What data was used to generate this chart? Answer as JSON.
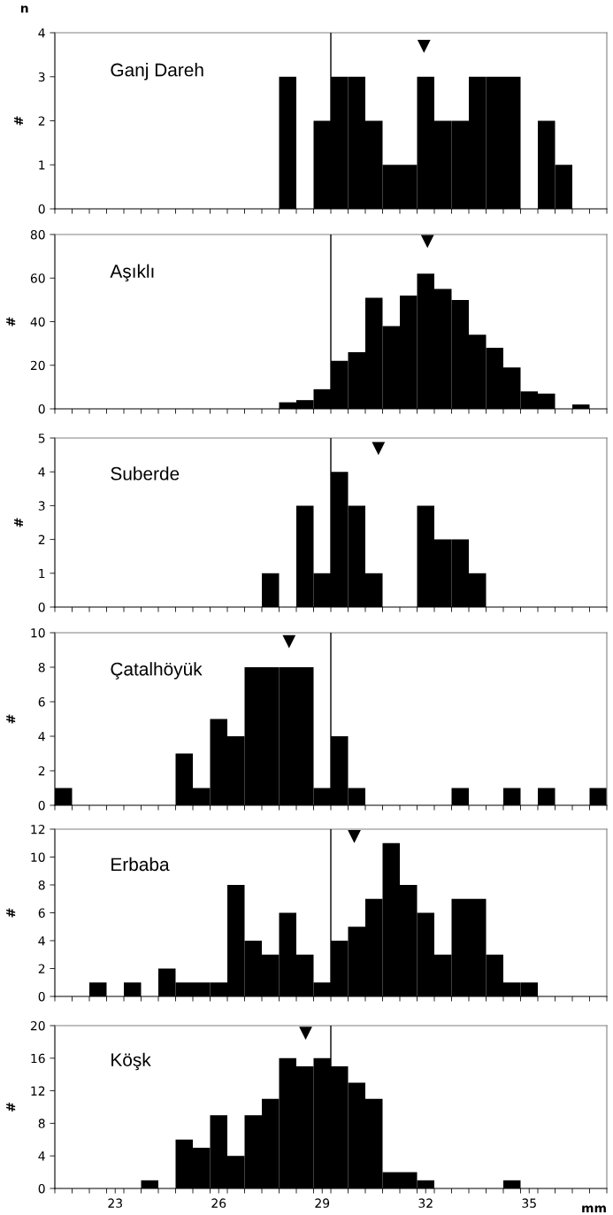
{
  "chart_data": [
    {
      "type": "histogram",
      "title": "Ganj Dareh",
      "ylabel": "#",
      "annotations": [
        "n"
      ],
      "tick_labels": "y",
      "xlim": [
        21.25,
        37.25
      ],
      "ylim": [
        0,
        4
      ],
      "yticks": [
        0,
        1,
        2,
        3,
        4
      ],
      "grid": false,
      "bins": [
        21.25,
        21.75,
        22.25,
        22.75,
        23.25,
        23.75,
        24.25,
        24.75,
        25.25,
        25.75,
        26.25,
        26.75,
        27.25,
        27.75,
        28.25,
        28.75,
        29.25,
        29.75,
        30.25,
        30.75,
        31.25,
        31.75,
        32.25,
        32.75,
        33.25,
        33.75,
        34.25,
        34.75,
        35.25,
        35.75,
        36.25,
        36.75,
        37.25
      ],
      "xticks": [
        {
          "value": 21.25,
          "label": null
        },
        {
          "value": 21.75,
          "label": null
        },
        {
          "value": 22.25,
          "label": null
        },
        {
          "value": 22.75,
          "label": null
        },
        {
          "value": 23.25,
          "label": null
        },
        {
          "value": 23.75,
          "label": null
        },
        {
          "value": 24.25,
          "label": null
        },
        {
          "value": 24.75,
          "label": null
        },
        {
          "value": 25.25,
          "label": null
        },
        {
          "value": 25.75,
          "label": null
        },
        {
          "value": 26.25,
          "label": null
        },
        {
          "value": 26.75,
          "label": null
        },
        {
          "value": 27.25,
          "label": null
        },
        {
          "value": 27.75,
          "label": null
        },
        {
          "value": 28.25,
          "label": null
        },
        {
          "value": 28.75,
          "label": null
        },
        {
          "value": 29.25,
          "label": null
        },
        {
          "value": 29.75,
          "label": null
        },
        {
          "value": 30.25,
          "label": null
        },
        {
          "value": 30.75,
          "label": null
        },
        {
          "value": 31.25,
          "label": null
        },
        {
          "value": 31.75,
          "label": null
        },
        {
          "value": 32.25,
          "label": null
        },
        {
          "value": 32.75,
          "label": null
        },
        {
          "value": 33.25,
          "label": null
        },
        {
          "value": 33.75,
          "label": null
        },
        {
          "value": 34.25,
          "label": null
        },
        {
          "value": 34.75,
          "label": null
        },
        {
          "value": 35.25,
          "label": null
        },
        {
          "value": 35.75,
          "label": null
        },
        {
          "value": 36.25,
          "label": null
        },
        {
          "value": 36.75,
          "label": null
        },
        {
          "value": 37.25,
          "label": null
        }
      ],
      "ref_lines": [
        {
          "axis": "x",
          "value": 29.25,
          "color": "#000000"
        }
      ],
      "series": [
        {
          "type": "histogram",
          "color": "#000000",
          "values": [
            0,
            0,
            0,
            0,
            0,
            0,
            0,
            0,
            0,
            0,
            0,
            0,
            0,
            3,
            0,
            2,
            3,
            3,
            2,
            1,
            1,
            3,
            2,
            2,
            3,
            3,
            3,
            0,
            2,
            1,
            0,
            0
          ]
        },
        {
          "type": "scatter",
          "marker": "triangle",
          "color": "#000000",
          "x": [
            31.95
          ],
          "values": [
            3.7
          ]
        }
      ]
    },
    {
      "type": "histogram",
      "title": "Aşıklı",
      "ylabel": "#",
      "tick_labels": "y",
      "xlim": [
        21.25,
        37.25
      ],
      "ylim": [
        0,
        80
      ],
      "yticks": [
        0,
        20,
        40,
        60,
        80
      ],
      "grid": false,
      "bins": [
        21.25,
        21.75,
        22.25,
        22.75,
        23.25,
        23.75,
        24.25,
        24.75,
        25.25,
        25.75,
        26.25,
        26.75,
        27.25,
        27.75,
        28.25,
        28.75,
        29.25,
        29.75,
        30.25,
        30.75,
        31.25,
        31.75,
        32.25,
        32.75,
        33.25,
        33.75,
        34.25,
        34.75,
        35.25,
        35.75,
        36.25,
        36.75,
        37.25
      ],
      "xticks": [
        {
          "value": 21.25,
          "label": null
        },
        {
          "value": 21.75,
          "label": null
        },
        {
          "value": 22.25,
          "label": null
        },
        {
          "value": 22.75,
          "label": null
        },
        {
          "value": 23.25,
          "label": null
        },
        {
          "value": 23.75,
          "label": null
        },
        {
          "value": 24.25,
          "label": null
        },
        {
          "value": 24.75,
          "label": null
        },
        {
          "value": 25.25,
          "label": null
        },
        {
          "value": 25.75,
          "label": null
        },
        {
          "value": 26.25,
          "label": null
        },
        {
          "value": 26.75,
          "label": null
        },
        {
          "value": 27.25,
          "label": null
        },
        {
          "value": 27.75,
          "label": null
        },
        {
          "value": 28.25,
          "label": null
        },
        {
          "value": 28.75,
          "label": null
        },
        {
          "value": 29.25,
          "label": null
        },
        {
          "value": 29.75,
          "label": null
        },
        {
          "value": 30.25,
          "label": null
        },
        {
          "value": 30.75,
          "label": null
        },
        {
          "value": 31.25,
          "label": null
        },
        {
          "value": 31.75,
          "label": null
        },
        {
          "value": 32.25,
          "label": null
        },
        {
          "value": 32.75,
          "label": null
        },
        {
          "value": 33.25,
          "label": null
        },
        {
          "value": 33.75,
          "label": null
        },
        {
          "value": 34.25,
          "label": null
        },
        {
          "value": 34.75,
          "label": null
        },
        {
          "value": 35.25,
          "label": null
        },
        {
          "value": 35.75,
          "label": null
        },
        {
          "value": 36.25,
          "label": null
        },
        {
          "value": 36.75,
          "label": null
        },
        {
          "value": 37.25,
          "label": null
        }
      ],
      "ref_lines": [
        {
          "axis": "x",
          "value": 29.25,
          "color": "#000000"
        }
      ],
      "series": [
        {
          "type": "histogram",
          "color": "#000000",
          "values": [
            0,
            0,
            0,
            0,
            0,
            0,
            0,
            0,
            0,
            0,
            0,
            0,
            0,
            3,
            4,
            9,
            22,
            26,
            51,
            38,
            52,
            62,
            55,
            50,
            34,
            28,
            19,
            8,
            7,
            0,
            2,
            0
          ]
        },
        {
          "type": "scatter",
          "marker": "triangle",
          "color": "#000000",
          "x": [
            32.05
          ],
          "values": [
            77
          ]
        }
      ]
    },
    {
      "type": "histogram",
      "title": "Suberde",
      "ylabel": "#",
      "tick_labels": "y",
      "xlim": [
        21.25,
        37.25
      ],
      "ylim": [
        0,
        5
      ],
      "yticks": [
        0,
        1,
        2,
        3,
        4,
        5
      ],
      "grid": false,
      "bins": [
        21.25,
        21.75,
        22.25,
        22.75,
        23.25,
        23.75,
        24.25,
        24.75,
        25.25,
        25.75,
        26.25,
        26.75,
        27.25,
        27.75,
        28.25,
        28.75,
        29.25,
        29.75,
        30.25,
        30.75,
        31.25,
        31.75,
        32.25,
        32.75,
        33.25,
        33.75,
        34.25,
        34.75,
        35.25,
        35.75,
        36.25,
        36.75,
        37.25
      ],
      "xticks": [
        {
          "value": 21.25,
          "label": null
        },
        {
          "value": 21.75,
          "label": null
        },
        {
          "value": 22.25,
          "label": null
        },
        {
          "value": 22.75,
          "label": null
        },
        {
          "value": 23.25,
          "label": null
        },
        {
          "value": 23.75,
          "label": null
        },
        {
          "value": 24.25,
          "label": null
        },
        {
          "value": 24.75,
          "label": null
        },
        {
          "value": 25.25,
          "label": null
        },
        {
          "value": 25.75,
          "label": null
        },
        {
          "value": 26.25,
          "label": null
        },
        {
          "value": 26.75,
          "label": null
        },
        {
          "value": 27.25,
          "label": null
        },
        {
          "value": 27.75,
          "label": null
        },
        {
          "value": 28.25,
          "label": null
        },
        {
          "value": 28.75,
          "label": null
        },
        {
          "value": 29.25,
          "label": null
        },
        {
          "value": 29.75,
          "label": null
        },
        {
          "value": 30.25,
          "label": null
        },
        {
          "value": 30.75,
          "label": null
        },
        {
          "value": 31.25,
          "label": null
        },
        {
          "value": 31.75,
          "label": null
        },
        {
          "value": 32.25,
          "label": null
        },
        {
          "value": 32.75,
          "label": null
        },
        {
          "value": 33.25,
          "label": null
        },
        {
          "value": 33.75,
          "label": null
        },
        {
          "value": 34.25,
          "label": null
        },
        {
          "value": 34.75,
          "label": null
        },
        {
          "value": 35.25,
          "label": null
        },
        {
          "value": 35.75,
          "label": null
        },
        {
          "value": 36.25,
          "label": null
        },
        {
          "value": 36.75,
          "label": null
        },
        {
          "value": 37.25,
          "label": null
        }
      ],
      "ref_lines": [
        {
          "axis": "x",
          "value": 29.25,
          "color": "#000000"
        }
      ],
      "series": [
        {
          "type": "histogram",
          "color": "#000000",
          "values": [
            0,
            0,
            0,
            0,
            0,
            0,
            0,
            0,
            0,
            0,
            0,
            0,
            1,
            0,
            3,
            1,
            4,
            3,
            1,
            0,
            0,
            3,
            2,
            2,
            1,
            0,
            0,
            0,
            0,
            0,
            0,
            0
          ]
        },
        {
          "type": "scatter",
          "marker": "triangle",
          "color": "#000000",
          "x": [
            30.63
          ],
          "values": [
            4.7
          ]
        }
      ]
    },
    {
      "type": "histogram",
      "title": "Çatalhöyük",
      "ylabel": "#",
      "tick_labels": "y",
      "xlim": [
        21.25,
        37.25
      ],
      "ylim": [
        0,
        10
      ],
      "yticks": [
        0,
        2,
        4,
        6,
        8,
        10
      ],
      "grid": false,
      "bins": [
        21.25,
        21.75,
        22.25,
        22.75,
        23.25,
        23.75,
        24.25,
        24.75,
        25.25,
        25.75,
        26.25,
        26.75,
        27.25,
        27.75,
        28.25,
        28.75,
        29.25,
        29.75,
        30.25,
        30.75,
        31.25,
        31.75,
        32.25,
        32.75,
        33.25,
        33.75,
        34.25,
        34.75,
        35.25,
        35.75,
        36.25,
        36.75,
        37.25
      ],
      "xticks": [
        {
          "value": 21.25,
          "label": null
        },
        {
          "value": 21.75,
          "label": null
        },
        {
          "value": 22.25,
          "label": null
        },
        {
          "value": 22.75,
          "label": null
        },
        {
          "value": 23.25,
          "label": null
        },
        {
          "value": 23.75,
          "label": null
        },
        {
          "value": 24.25,
          "label": null
        },
        {
          "value": 24.75,
          "label": null
        },
        {
          "value": 25.25,
          "label": null
        },
        {
          "value": 25.75,
          "label": null
        },
        {
          "value": 26.25,
          "label": null
        },
        {
          "value": 26.75,
          "label": null
        },
        {
          "value": 27.25,
          "label": null
        },
        {
          "value": 27.75,
          "label": null
        },
        {
          "value": 28.25,
          "label": null
        },
        {
          "value": 28.75,
          "label": null
        },
        {
          "value": 29.25,
          "label": null
        },
        {
          "value": 29.75,
          "label": null
        },
        {
          "value": 30.25,
          "label": null
        },
        {
          "value": 30.75,
          "label": null
        },
        {
          "value": 31.25,
          "label": null
        },
        {
          "value": 31.75,
          "label": null
        },
        {
          "value": 32.25,
          "label": null
        },
        {
          "value": 32.75,
          "label": null
        },
        {
          "value": 33.25,
          "label": null
        },
        {
          "value": 33.75,
          "label": null
        },
        {
          "value": 34.25,
          "label": null
        },
        {
          "value": 34.75,
          "label": null
        },
        {
          "value": 35.25,
          "label": null
        },
        {
          "value": 35.75,
          "label": null
        },
        {
          "value": 36.25,
          "label": null
        },
        {
          "value": 36.75,
          "label": null
        },
        {
          "value": 37.25,
          "label": null
        }
      ],
      "ref_lines": [
        {
          "axis": "x",
          "value": 29.25,
          "color": "#000000"
        }
      ],
      "series": [
        {
          "type": "histogram",
          "color": "#000000",
          "values": [
            1,
            0,
            0,
            0,
            0,
            0,
            0,
            3,
            1,
            5,
            4,
            8,
            8,
            8,
            8,
            1,
            4,
            1,
            0,
            0,
            0,
            0,
            0,
            1,
            0,
            0,
            1,
            0,
            1,
            0,
            0,
            1
          ]
        },
        {
          "type": "scatter",
          "marker": "triangle",
          "color": "#000000",
          "x": [
            28.04
          ],
          "values": [
            9.5
          ]
        }
      ]
    },
    {
      "type": "histogram",
      "title": "Erbaba",
      "ylabel": "#",
      "tick_labels": "y",
      "xlim": [
        21.25,
        37.25
      ],
      "ylim": [
        0,
        12
      ],
      "yticks": [
        0,
        2,
        4,
        6,
        8,
        10,
        12
      ],
      "grid": false,
      "bins": [
        21.25,
        21.75,
        22.25,
        22.75,
        23.25,
        23.75,
        24.25,
        24.75,
        25.25,
        25.75,
        26.25,
        26.75,
        27.25,
        27.75,
        28.25,
        28.75,
        29.25,
        29.75,
        30.25,
        30.75,
        31.25,
        31.75,
        32.25,
        32.75,
        33.25,
        33.75,
        34.25,
        34.75,
        35.25,
        35.75,
        36.25,
        36.75,
        37.25
      ],
      "xticks": [
        {
          "value": 21.25,
          "label": null
        },
        {
          "value": 21.75,
          "label": null
        },
        {
          "value": 22.25,
          "label": null
        },
        {
          "value": 22.75,
          "label": null
        },
        {
          "value": 23.25,
          "label": null
        },
        {
          "value": 23.75,
          "label": null
        },
        {
          "value": 24.25,
          "label": null
        },
        {
          "value": 24.75,
          "label": null
        },
        {
          "value": 25.25,
          "label": null
        },
        {
          "value": 25.75,
          "label": null
        },
        {
          "value": 26.25,
          "label": null
        },
        {
          "value": 26.75,
          "label": null
        },
        {
          "value": 27.25,
          "label": null
        },
        {
          "value": 27.75,
          "label": null
        },
        {
          "value": 28.25,
          "label": null
        },
        {
          "value": 28.75,
          "label": null
        },
        {
          "value": 29.25,
          "label": null
        },
        {
          "value": 29.75,
          "label": null
        },
        {
          "value": 30.25,
          "label": null
        },
        {
          "value": 30.75,
          "label": null
        },
        {
          "value": 31.25,
          "label": null
        },
        {
          "value": 31.75,
          "label": null
        },
        {
          "value": 32.25,
          "label": null
        },
        {
          "value": 32.75,
          "label": null
        },
        {
          "value": 33.25,
          "label": null
        },
        {
          "value": 33.75,
          "label": null
        },
        {
          "value": 34.25,
          "label": null
        },
        {
          "value": 34.75,
          "label": null
        },
        {
          "value": 35.25,
          "label": null
        },
        {
          "value": 35.75,
          "label": null
        },
        {
          "value": 36.25,
          "label": null
        },
        {
          "value": 36.75,
          "label": null
        },
        {
          "value": 37.25,
          "label": null
        }
      ],
      "ref_lines": [
        {
          "axis": "x",
          "value": 29.25,
          "color": "#000000"
        }
      ],
      "series": [
        {
          "type": "histogram",
          "color": "#000000",
          "values": [
            0,
            0,
            1,
            0,
            1,
            0,
            2,
            1,
            1,
            1,
            8,
            4,
            3,
            6,
            3,
            1,
            4,
            5,
            7,
            11,
            8,
            6,
            3,
            7,
            7,
            3,
            1,
            1,
            0,
            0,
            0,
            0
          ]
        },
        {
          "type": "scatter",
          "marker": "triangle",
          "color": "#000000",
          "x": [
            29.93
          ],
          "values": [
            11.5
          ]
        }
      ]
    },
    {
      "type": "histogram",
      "title": "Köşk",
      "ylabel": "#",
      "xlabel": "mm",
      "xlim": [
        21.25,
        37.25
      ],
      "ylim": [
        0,
        20
      ],
      "yticks": [
        0,
        4,
        8,
        12,
        16,
        20
      ],
      "grid": false,
      "bins": [
        21.25,
        21.75,
        22.25,
        22.75,
        23.25,
        23.75,
        24.25,
        24.75,
        25.25,
        25.75,
        26.25,
        26.75,
        27.25,
        27.75,
        28.25,
        28.75,
        29.25,
        29.75,
        30.25,
        30.75,
        31.25,
        31.75,
        32.25,
        32.75,
        33.25,
        33.75,
        34.25,
        34.75,
        35.25,
        35.75,
        36.25,
        36.75,
        37.25
      ],
      "xticks": [
        {
          "value": 21.25,
          "label": null
        },
        {
          "value": 21.75,
          "label": null
        },
        {
          "value": 22.25,
          "label": null
        },
        {
          "value": 22.75,
          "label": null
        },
        {
          "value": 23,
          "label": "23"
        },
        {
          "value": 23.25,
          "label": null
        },
        {
          "value": 23.75,
          "label": null
        },
        {
          "value": 24.25,
          "label": null
        },
        {
          "value": 24.75,
          "label": null
        },
        {
          "value": 25.25,
          "label": null
        },
        {
          "value": 25.75,
          "label": null
        },
        {
          "value": 26,
          "label": "26"
        },
        {
          "value": 26.25,
          "label": null
        },
        {
          "value": 26.75,
          "label": null
        },
        {
          "value": 27.25,
          "label": null
        },
        {
          "value": 27.75,
          "label": null
        },
        {
          "value": 28.25,
          "label": null
        },
        {
          "value": 28.75,
          "label": null
        },
        {
          "value": 29,
          "label": "29"
        },
        {
          "value": 29.25,
          "label": null
        },
        {
          "value": 29.75,
          "label": null
        },
        {
          "value": 30.25,
          "label": null
        },
        {
          "value": 30.75,
          "label": null
        },
        {
          "value": 31.25,
          "label": null
        },
        {
          "value": 31.75,
          "label": null
        },
        {
          "value": 32,
          "label": "32"
        },
        {
          "value": 32.25,
          "label": null
        },
        {
          "value": 32.75,
          "label": null
        },
        {
          "value": 33.25,
          "label": null
        },
        {
          "value": 33.75,
          "label": null
        },
        {
          "value": 34.25,
          "label": null
        },
        {
          "value": 34.75,
          "label": null
        },
        {
          "value": 35,
          "label": "35"
        },
        {
          "value": 35.25,
          "label": null
        },
        {
          "value": 35.75,
          "label": null
        },
        {
          "value": 36.25,
          "label": null
        },
        {
          "value": 36.75,
          "label": null
        },
        {
          "value": 37.25,
          "label": null
        }
      ],
      "ref_lines": [
        {
          "axis": "x",
          "value": 29.25,
          "color": "#000000"
        }
      ],
      "series": [
        {
          "type": "histogram",
          "color": "#000000",
          "values": [
            0,
            0,
            0,
            0,
            0,
            1,
            0,
            6,
            5,
            9,
            4,
            9,
            11,
            16,
            15,
            16,
            15,
            13,
            11,
            2,
            2,
            1,
            0,
            0,
            0,
            0,
            1,
            0,
            0,
            0,
            0,
            0
          ]
        },
        {
          "type": "scatter",
          "marker": "triangle",
          "color": "#000000",
          "x": [
            28.52
          ],
          "values": [
            19.1
          ]
        }
      ]
    }
  ]
}
